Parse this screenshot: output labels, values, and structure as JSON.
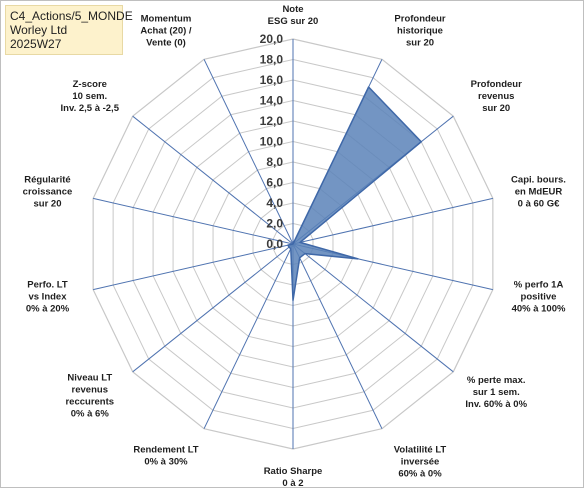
{
  "info": {
    "line1": "C4_Actions/5_MONDE",
    "line2": "Worley Ltd",
    "line3": "2025W27"
  },
  "chart_data": {
    "type": "radar",
    "ticks": [
      "0,0",
      "2,0",
      "4,0",
      "6,0",
      "8,0",
      "10,0",
      "12,0",
      "14,0",
      "16,0",
      "18,0",
      "20,0"
    ],
    "rlim": [
      0,
      20
    ],
    "grid": true,
    "axes": [
      {
        "label": [
          "Note",
          "ESG sur 20"
        ],
        "value": 0
      },
      {
        "label": [
          "Profondeur",
          "historique",
          "sur 20"
        ],
        "value": 17
      },
      {
        "label": [
          "Profondeur",
          "revenus",
          "sur 20"
        ],
        "value": 16
      },
      {
        "label": [
          "Capi. bours.",
          "en MdEUR",
          "0 à 60 G€"
        ],
        "value": 0.7
      },
      {
        "label": [
          "% perfo 1A",
          "positive",
          "40% à 100%"
        ],
        "value": 6.5
      },
      {
        "label": [
          "% perte max.",
          "sur 1 sem.",
          "Inv. 60% à 0%"
        ],
        "value": 1.5
      },
      {
        "label": [
          "Volatilité LT",
          "inversée",
          "60% à 0%"
        ],
        "value": 1.5
      },
      {
        "label": [
          "Ratio Sharpe",
          "0 à 2"
        ],
        "value": 5.5
      },
      {
        "label": [
          "Rendement LT",
          "0% à 30%"
        ],
        "value": 0.5
      },
      {
        "label": [
          "Niveau LT",
          "revenus",
          "reccurents",
          "0% à 6%"
        ],
        "value": 0.5
      },
      {
        "label": [
          "Perfo. LT",
          "vs Index",
          "0% à 20%"
        ],
        "value": 0.5
      },
      {
        "label": [
          "Régularité",
          "croissance",
          "sur 20"
        ],
        "value": 0
      },
      {
        "label": [
          "Z-score",
          "10 sem.",
          "Inv. 2,5 à -2,5"
        ],
        "value": 0
      },
      {
        "label": [
          "Momentum",
          "Achat (20) /",
          "Vente (0)"
        ],
        "value": 0
      }
    ],
    "colors": {
      "fill": "#5a82b8",
      "stroke": "#3f68a8",
      "grid": "#c8c8c8",
      "axis": "#4f73b0"
    }
  }
}
